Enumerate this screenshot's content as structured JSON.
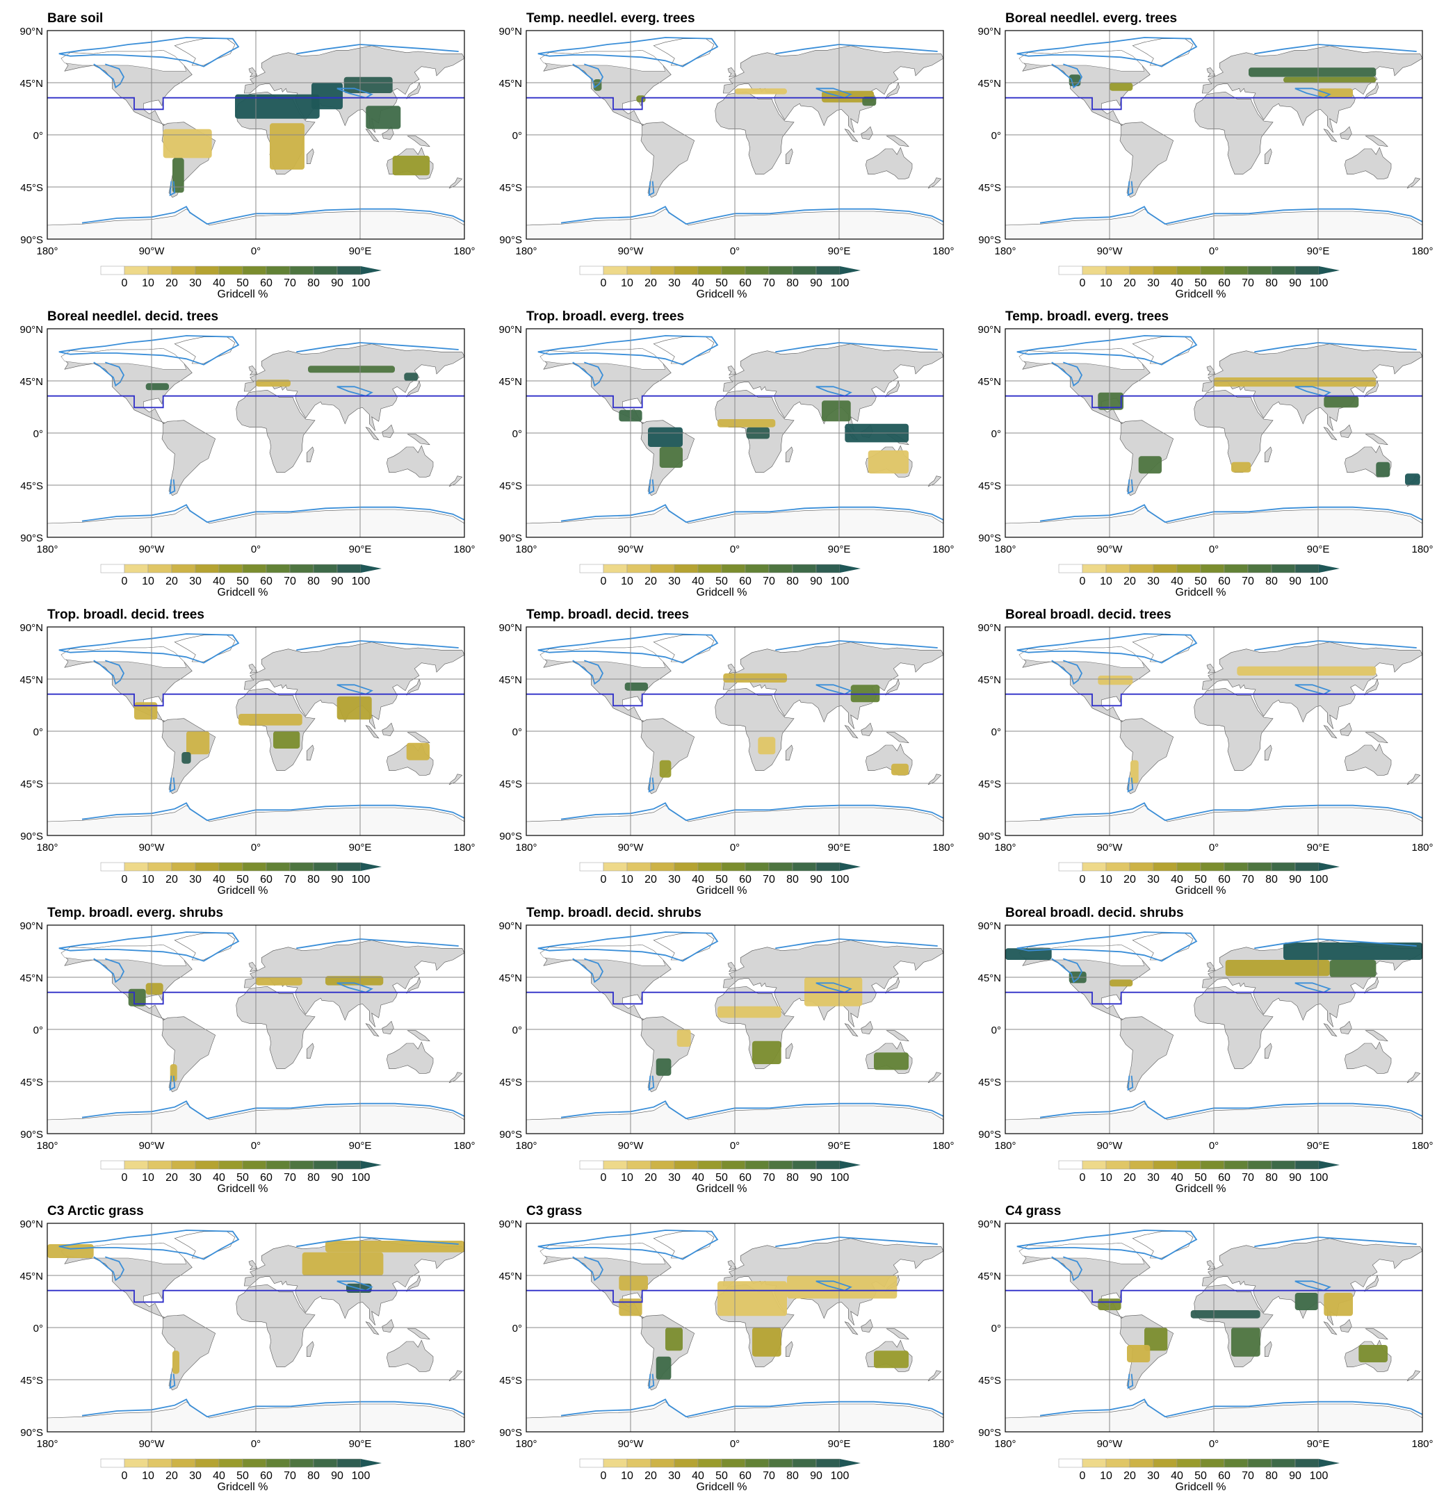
{
  "colorbar": {
    "ticks": [
      "0",
      "10",
      "20",
      "30",
      "40",
      "50",
      "60",
      "70",
      "80",
      "90",
      "100"
    ],
    "label": "Gridcell %",
    "colors": [
      "#ffffff",
      "#eed98a",
      "#e0c666",
      "#cdb347",
      "#b5a332",
      "#999b2c",
      "#7b8d2e",
      "#628236",
      "#4e7540",
      "#3e6a48",
      "#2f5e52",
      "#1f5757"
    ]
  },
  "axes": {
    "lat_labels": [
      "90°N",
      "45°N",
      "0°",
      "45°S",
      "90°S"
    ],
    "lon_labels": [
      "180°",
      "90°W",
      "0°",
      "90°E",
      "180°"
    ]
  },
  "map_colors": {
    "land": "#d6d6d6",
    "ocean": "#ffffff",
    "antarctica": "#f8f8f8",
    "ice_outline": "#3a8ed8",
    "region_outline": "#2d2dc8",
    "grid": "#888888"
  },
  "panels": [
    {
      "title": "Bare soil",
      "regions": [
        {
          "lon": [
            -18,
            55
          ],
          "lat": [
            14,
            35
          ],
          "level": 11
        },
        {
          "lon": [
            48,
            75
          ],
          "lat": [
            22,
            45
          ],
          "level": 11
        },
        {
          "lon": [
            76,
            118
          ],
          "lat": [
            36,
            50
          ],
          "level": 10
        },
        {
          "lon": [
            12,
            42
          ],
          "lat": [
            -30,
            10
          ],
          "level": 3
        },
        {
          "lon": [
            118,
            150
          ],
          "lat": [
            -35,
            -18
          ],
          "level": 5
        },
        {
          "lon": [
            -80,
            -38
          ],
          "lat": [
            -20,
            5
          ],
          "level": 2
        },
        {
          "lon": [
            -72,
            -62
          ],
          "lat": [
            -50,
            -20
          ],
          "level": 8
        },
        {
          "lon": [
            95,
            125
          ],
          "lat": [
            5,
            25
          ],
          "level": 9
        }
      ]
    },
    {
      "title": "Temp. needlel. everg. trees",
      "regions": [
        {
          "lon": [
            0,
            45
          ],
          "lat": [
            35,
            40
          ],
          "level": 2
        },
        {
          "lon": [
            75,
            120
          ],
          "lat": [
            28,
            38
          ],
          "level": 4
        },
        {
          "lon": [
            110,
            122
          ],
          "lat": [
            25,
            33
          ],
          "level": 8
        },
        {
          "lon": [
            -122,
            -115
          ],
          "lat": [
            38,
            48
          ],
          "level": 8
        },
        {
          "lon": [
            -85,
            -77
          ],
          "lat": [
            28,
            34
          ],
          "level": 6
        }
      ]
    },
    {
      "title": "Boreal needlel. everg. trees",
      "regions": [
        {
          "lon": [
            30,
            140
          ],
          "lat": [
            50,
            58
          ],
          "level": 9
        },
        {
          "lon": [
            60,
            140
          ],
          "lat": [
            45,
            50
          ],
          "level": 6
        },
        {
          "lon": [
            -125,
            -115
          ],
          "lat": [
            42,
            52
          ],
          "level": 9
        },
        {
          "lon": [
            -90,
            -70
          ],
          "lat": [
            38,
            45
          ],
          "level": 5
        },
        {
          "lon": [
            90,
            120
          ],
          "lat": [
            32,
            40
          ],
          "level": 3
        }
      ]
    },
    {
      "title": "Boreal needlel. decid. trees",
      "regions": [
        {
          "lon": [
            45,
            120
          ],
          "lat": [
            52,
            58
          ],
          "level": 8
        },
        {
          "lon": [
            128,
            140
          ],
          "lat": [
            45,
            52
          ],
          "level": 10
        },
        {
          "lon": [
            0,
            30
          ],
          "lat": [
            40,
            46
          ],
          "level": 3
        },
        {
          "lon": [
            -95,
            -75
          ],
          "lat": [
            37,
            43
          ],
          "level": 9
        }
      ]
    },
    {
      "title": "Trop. broadl. everg. trees",
      "regions": [
        {
          "lon": [
            -75,
            -45
          ],
          "lat": [
            -12,
            5
          ],
          "level": 11
        },
        {
          "lon": [
            -65,
            -45
          ],
          "lat": [
            -30,
            -12
          ],
          "level": 8
        },
        {
          "lon": [
            -100,
            -80
          ],
          "lat": [
            10,
            20
          ],
          "level": 9
        },
        {
          "lon": [
            10,
            30
          ],
          "lat": [
            -5,
            5
          ],
          "level": 10
        },
        {
          "lon": [
            -15,
            35
          ],
          "lat": [
            5,
            12
          ],
          "level": 3
        },
        {
          "lon": [
            95,
            150
          ],
          "lat": [
            -8,
            8
          ],
          "level": 11
        },
        {
          "lon": [
            75,
            100
          ],
          "lat": [
            10,
            28
          ],
          "level": 8
        },
        {
          "lon": [
            115,
            150
          ],
          "lat": [
            -35,
            -15
          ],
          "level": 2
        }
      ]
    },
    {
      "title": "Temp. broadl. everg. trees",
      "regions": [
        {
          "lon": [
            -65,
            -45
          ],
          "lat": [
            -35,
            -20
          ],
          "level": 8
        },
        {
          "lon": [
            -100,
            -78
          ],
          "lat": [
            20,
            35
          ],
          "level": 8
        },
        {
          "lon": [
            0,
            140
          ],
          "lat": [
            40,
            48
          ],
          "level": 3
        },
        {
          "lon": [
            95,
            125
          ],
          "lat": [
            22,
            32
          ],
          "level": 8
        },
        {
          "lon": [
            140,
            152
          ],
          "lat": [
            -38,
            -25
          ],
          "level": 9
        },
        {
          "lon": [
            165,
            178
          ],
          "lat": [
            -45,
            -35
          ],
          "level": 11
        },
        {
          "lon": [
            15,
            32
          ],
          "lat": [
            -34,
            -25
          ],
          "level": 3
        }
      ]
    },
    {
      "title": "Trop. broadl. decid. trees",
      "regions": [
        {
          "lon": [
            -60,
            -40
          ],
          "lat": [
            -20,
            0
          ],
          "level": 3
        },
        {
          "lon": [
            -64,
            -56
          ],
          "lat": [
            -28,
            -18
          ],
          "level": 10
        },
        {
          "lon": [
            -105,
            -85
          ],
          "lat": [
            10,
            25
          ],
          "level": 3
        },
        {
          "lon": [
            -15,
            40
          ],
          "lat": [
            5,
            15
          ],
          "level": 3
        },
        {
          "lon": [
            15,
            38
          ],
          "lat": [
            -15,
            0
          ],
          "level": 6
        },
        {
          "lon": [
            70,
            100
          ],
          "lat": [
            10,
            30
          ],
          "level": 4
        },
        {
          "lon": [
            130,
            150
          ],
          "lat": [
            -25,
            -10
          ],
          "level": 3
        }
      ]
    },
    {
      "title": "Temp. broadl. decid. trees",
      "regions": [
        {
          "lon": [
            100,
            125
          ],
          "lat": [
            25,
            40
          ],
          "level": 7
        },
        {
          "lon": [
            -95,
            -75
          ],
          "lat": [
            35,
            42
          ],
          "level": 9
        },
        {
          "lon": [
            -10,
            45
          ],
          "lat": [
            42,
            50
          ],
          "level": 3
        },
        {
          "lon": [
            -65,
            -55
          ],
          "lat": [
            -40,
            -25
          ],
          "level": 5
        },
        {
          "lon": [
            135,
            150
          ],
          "lat": [
            -38,
            -28
          ],
          "level": 3
        },
        {
          "lon": [
            20,
            35
          ],
          "lat": [
            -20,
            -5
          ],
          "level": 2
        }
      ]
    },
    {
      "title": "Boreal broadl. decid. trees",
      "regions": [
        {
          "lon": [
            20,
            140
          ],
          "lat": [
            48,
            56
          ],
          "level": 2
        },
        {
          "lon": [
            -100,
            -70
          ],
          "lat": [
            40,
            48
          ],
          "level": 2
        },
        {
          "lon": [
            -72,
            -65
          ],
          "lat": [
            -45,
            -25
          ],
          "level": 2
        }
      ]
    },
    {
      "title": "Temp. broadl. everg. shrubs",
      "regions": [
        {
          "lon": [
            -110,
            -95
          ],
          "lat": [
            20,
            35
          ],
          "level": 8
        },
        {
          "lon": [
            -95,
            -80
          ],
          "lat": [
            30,
            40
          ],
          "level": 4
        },
        {
          "lon": [
            0,
            40
          ],
          "lat": [
            38,
            45
          ],
          "level": 3
        },
        {
          "lon": [
            60,
            110
          ],
          "lat": [
            38,
            46
          ],
          "level": 4
        },
        {
          "lon": [
            -74,
            -68
          ],
          "lat": [
            -45,
            -30
          ],
          "level": 3
        }
      ]
    },
    {
      "title": "Temp. broadl. decid. shrubs",
      "regions": [
        {
          "lon": [
            -68,
            -55
          ],
          "lat": [
            -40,
            -25
          ],
          "level": 9
        },
        {
          "lon": [
            -50,
            -38
          ],
          "lat": [
            -15,
            0
          ],
          "level": 2
        },
        {
          "lon": [
            120,
            150
          ],
          "lat": [
            -35,
            -20
          ],
          "level": 7
        },
        {
          "lon": [
            15,
            40
          ],
          "lat": [
            -30,
            -10
          ],
          "level": 6
        },
        {
          "lon": [
            -15,
            40
          ],
          "lat": [
            10,
            20
          ],
          "level": 2
        },
        {
          "lon": [
            60,
            110
          ],
          "lat": [
            20,
            45
          ],
          "level": 2
        }
      ]
    },
    {
      "title": "Boreal broadl. decid. shrubs",
      "regions": [
        {
          "lon": [
            60,
            180
          ],
          "lat": [
            60,
            75
          ],
          "level": 11
        },
        {
          "lon": [
            -180,
            -140
          ],
          "lat": [
            60,
            70
          ],
          "level": 11
        },
        {
          "lon": [
            10,
            100
          ],
          "lat": [
            46,
            60
          ],
          "level": 4
        },
        {
          "lon": [
            100,
            140
          ],
          "lat": [
            45,
            60
          ],
          "level": 8
        },
        {
          "lon": [
            -125,
            -110
          ],
          "lat": [
            40,
            50
          ],
          "level": 9
        },
        {
          "lon": [
            -90,
            -70
          ],
          "lat": [
            37,
            43
          ],
          "level": 4
        }
      ]
    },
    {
      "title": "C3 Arctic grass",
      "regions": [
        {
          "lon": [
            -180,
            -140
          ],
          "lat": [
            60,
            72
          ],
          "level": 3
        },
        {
          "lon": [
            60,
            180
          ],
          "lat": [
            65,
            75
          ],
          "level": 3
        },
        {
          "lon": [
            40,
            110
          ],
          "lat": [
            45,
            65
          ],
          "level": 3
        },
        {
          "lon": [
            78,
            100
          ],
          "lat": [
            30,
            38
          ],
          "level": 10
        },
        {
          "lon": [
            -72,
            -66
          ],
          "lat": [
            -40,
            -20
          ],
          "level": 3
        }
      ]
    },
    {
      "title": "C3 grass",
      "regions": [
        {
          "lon": [
            -60,
            -45
          ],
          "lat": [
            -20,
            0
          ],
          "level": 6
        },
        {
          "lon": [
            -68,
            -55
          ],
          "lat": [
            -45,
            -25
          ],
          "level": 9
        },
        {
          "lon": [
            -100,
            -80
          ],
          "lat": [
            10,
            25
          ],
          "level": 3
        },
        {
          "lon": [
            -15,
            45
          ],
          "lat": [
            10,
            40
          ],
          "level": 2
        },
        {
          "lon": [
            45,
            140
          ],
          "lat": [
            25,
            45
          ],
          "level": 2
        },
        {
          "lon": [
            15,
            40
          ],
          "lat": [
            -25,
            0
          ],
          "level": 4
        },
        {
          "lon": [
            120,
            150
          ],
          "lat": [
            -35,
            -20
          ],
          "level": 5
        },
        {
          "lon": [
            -100,
            -75
          ],
          "lat": [
            32,
            45
          ],
          "level": 3
        }
      ]
    },
    {
      "title": "C4 grass",
      "regions": [
        {
          "lon": [
            -20,
            40
          ],
          "lat": [
            8,
            15
          ],
          "level": 10
        },
        {
          "lon": [
            15,
            40
          ],
          "lat": [
            -25,
            0
          ],
          "level": 8
        },
        {
          "lon": [
            -60,
            -40
          ],
          "lat": [
            -20,
            0
          ],
          "level": 6
        },
        {
          "lon": [
            -75,
            -55
          ],
          "lat": [
            -30,
            -15
          ],
          "level": 3
        },
        {
          "lon": [
            -100,
            -80
          ],
          "lat": [
            15,
            25
          ],
          "level": 6
        },
        {
          "lon": [
            70,
            90
          ],
          "lat": [
            15,
            30
          ],
          "level": 9
        },
        {
          "lon": [
            125,
            150
          ],
          "lat": [
            -30,
            -15
          ],
          "level": 6
        },
        {
          "lon": [
            95,
            120
          ],
          "lat": [
            10,
            30
          ],
          "level": 3
        }
      ]
    }
  ]
}
